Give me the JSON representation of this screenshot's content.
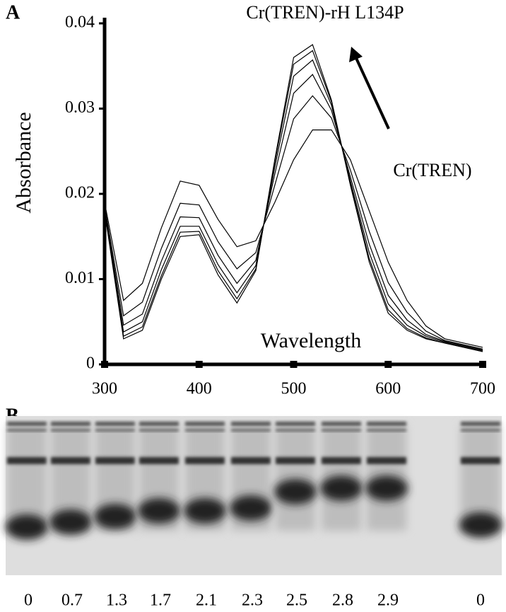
{
  "chart_data": {
    "type": "line",
    "title": "Cr(TREN)-rH L134P",
    "annotations": [
      "Cr(TREN)"
    ],
    "xlabel": "Wavelength",
    "ylabel": "Absorbance",
    "x": [
      300,
      320,
      340,
      360,
      380,
      400,
      420,
      440,
      460,
      480,
      500,
      520,
      540,
      560,
      580,
      600,
      620,
      640,
      660,
      680,
      700
    ],
    "series": [
      {
        "color": "#000000",
        "values": [
          0.019,
          0.0075,
          0.0095,
          0.016,
          0.0215,
          0.021,
          0.017,
          0.0138,
          0.0145,
          0.019,
          0.024,
          0.0275,
          0.0275,
          0.024,
          0.018,
          0.012,
          0.0075,
          0.0045,
          0.003,
          0.0025,
          0.002
        ]
      },
      {
        "color": "#000000",
        "values": [
          0.0186,
          0.0057,
          0.0073,
          0.0136,
          0.0189,
          0.0187,
          0.0144,
          0.0112,
          0.0131,
          0.021,
          0.0288,
          0.0315,
          0.0289,
          0.0228,
          0.0156,
          0.0096,
          0.0061,
          0.0039,
          0.0028,
          0.0023,
          0.0018
        ]
      },
      {
        "color": "#000000",
        "values": [
          0.0184,
          0.0046,
          0.0059,
          0.0121,
          0.0173,
          0.0172,
          0.0128,
          0.0095,
          0.0122,
          0.0223,
          0.0318,
          0.034,
          0.0298,
          0.022,
          0.0141,
          0.0081,
          0.0052,
          0.0035,
          0.0027,
          0.0022,
          0.0017
        ]
      },
      {
        "color": "#000000",
        "values": [
          0.0182,
          0.0038,
          0.005,
          0.0111,
          0.0162,
          0.0162,
          0.0117,
          0.0084,
          0.0116,
          0.0231,
          0.0338,
          0.0357,
          0.0304,
          0.0215,
          0.0131,
          0.0071,
          0.0046,
          0.0033,
          0.0026,
          0.0021,
          0.0016
        ]
      },
      {
        "color": "#000000",
        "values": [
          0.0181,
          0.0033,
          0.0044,
          0.0104,
          0.0155,
          0.0156,
          0.011,
          0.0077,
          0.0112,
          0.0237,
          0.0352,
          0.0368,
          0.0308,
          0.0212,
          0.0124,
          0.0064,
          0.0042,
          0.0031,
          0.0025,
          0.002,
          0.0015
        ]
      },
      {
        "color": "#000000",
        "values": [
          0.018,
          0.003,
          0.004,
          0.01,
          0.015,
          0.0152,
          0.0105,
          0.0072,
          0.011,
          0.024,
          0.036,
          0.0375,
          0.031,
          0.021,
          0.012,
          0.006,
          0.004,
          0.003,
          0.0025,
          0.002,
          0.0015
        ]
      }
    ],
    "xlim": [
      300,
      700
    ],
    "xticks": [
      300,
      400,
      500,
      600,
      700
    ],
    "ylim": [
      0,
      0.04
    ],
    "yticks": [
      0,
      0.01,
      0.02,
      0.03,
      0.04
    ],
    "grid": false
  },
  "figure": {
    "panel_a": "A",
    "panel_b": "B"
  },
  "gel": {
    "lane_labels": [
      0,
      0.7,
      1.3,
      1.7,
      2.1,
      2.3,
      2.5,
      2.8,
      2.9,
      0
    ]
  }
}
